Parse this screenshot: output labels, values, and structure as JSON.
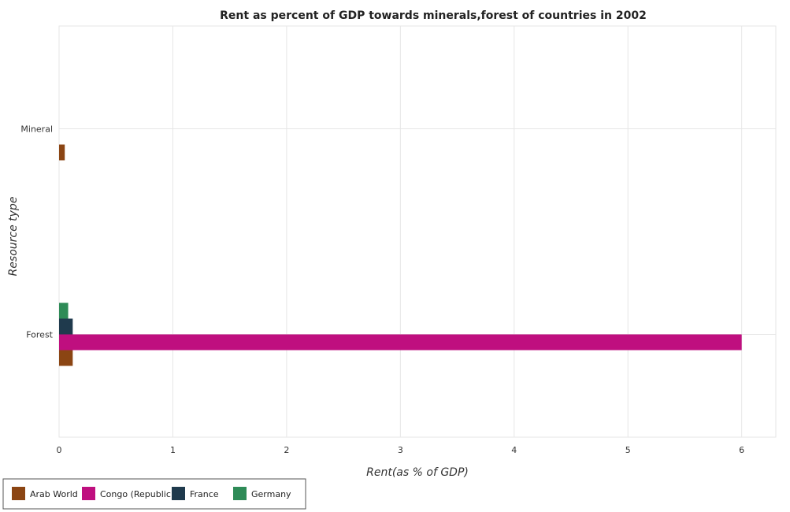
{
  "chart_data": {
    "type": "bar",
    "orientation": "horizontal",
    "title": "Rent as percent of GDP towards minerals,forest of countries in 2002",
    "xlabel": "Rent(as % of GDP)",
    "ylabel": "Resource type",
    "categories": [
      "Mineral",
      "Forest"
    ],
    "series": [
      {
        "name": "Arab World",
        "color": "#8B4513",
        "values": [
          0.05,
          0.12
        ]
      },
      {
        "name": "Congo (Republic)",
        "color": "#BF0F7F",
        "values": [
          0.0,
          6.0
        ]
      },
      {
        "name": "France",
        "color": "#1F3A4D",
        "values": [
          0.0,
          0.12
        ]
      },
      {
        "name": "Germany",
        "color": "#2E8B57",
        "values": [
          0.0,
          0.08
        ]
      }
    ],
    "xlim": [
      0,
      6.3
    ],
    "xticks": [
      0,
      1,
      2,
      3,
      4,
      5,
      6
    ],
    "grid": true,
    "legend_position": "bottom-left"
  }
}
